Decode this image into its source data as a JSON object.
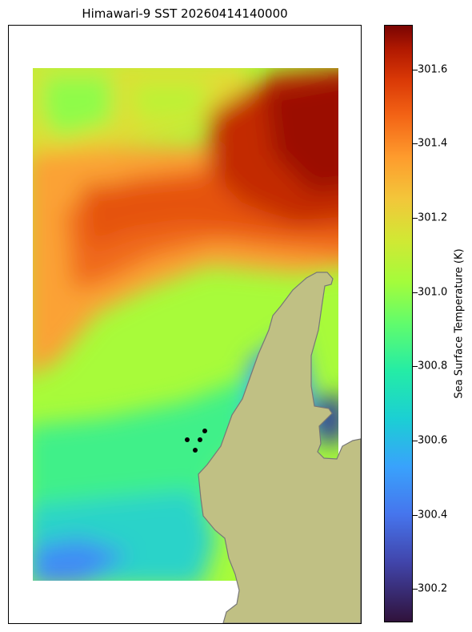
{
  "title": "Himawari-9 SST 20260414140000",
  "colorbar": {
    "label": "Sea Surface Temperature (K)",
    "ticks": [
      "301.6",
      "301.4",
      "301.2",
      "301.0",
      "300.8",
      "300.6",
      "300.4",
      "300.2"
    ],
    "range": [
      300.11,
      301.72
    ],
    "colormap": "turbo"
  },
  "map": {
    "land_color": "#c0c084",
    "coast_color": "#777777",
    "marker_color": "#000000",
    "marker_count": 4
  }
}
